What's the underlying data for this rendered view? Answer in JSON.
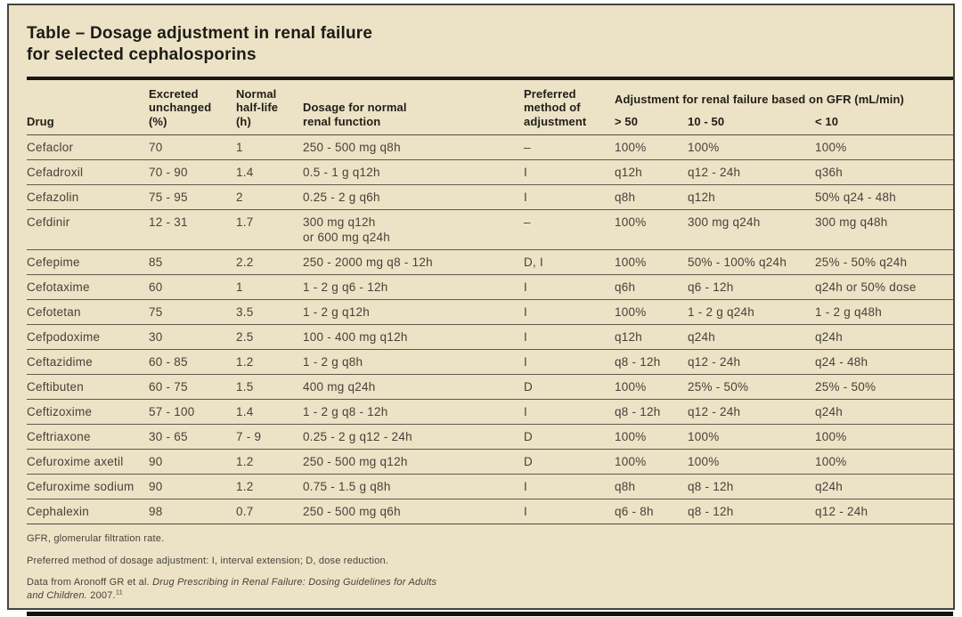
{
  "title": {
    "line1": "Table – Dosage adjustment in renal failure",
    "line2": "for selected cephalosporins"
  },
  "table": {
    "col_ids": [
      "drug",
      "excreted-unchanged",
      "half-life",
      "normal-dosage",
      "adjustment-method",
      "gfr-gt-50",
      "gfr-10-50",
      "gfr-lt-10"
    ],
    "headers": {
      "drug": "Drug",
      "excreted": "Excreted\nunchanged\n(%)",
      "half_life": "Normal\nhalf-life\n(h)",
      "dosage": "Dosage for normal\nrenal function",
      "method": "Preferred\nmethod of\nadjustment",
      "gfr_group": "Adjustment for renal failure based on GFR (mL/min)",
      "gfr_gt50": "> 50",
      "gfr_10_50": "10 - 50",
      "gfr_lt10": "< 10"
    },
    "rows": [
      [
        "Cefaclor",
        "70",
        "1",
        "250 - 500 mg q8h",
        "–",
        "100%",
        "100%",
        "100%"
      ],
      [
        "Cefadroxil",
        "70 - 90",
        "1.4",
        "0.5 - 1 g q12h",
        "I",
        "q12h",
        "q12 - 24h",
        "q36h"
      ],
      [
        "Cefazolin",
        "75 - 95",
        "2",
        "0.25 - 2 g q6h",
        "I",
        "q8h",
        "q12h",
        "50% q24 - 48h"
      ],
      [
        "Cefdinir",
        "12 - 31",
        "1.7",
        "300 mg q12h\nor 600 mg q24h",
        "–",
        "100%",
        "300 mg q24h",
        "300 mg q48h"
      ],
      [
        "Cefepime",
        "85",
        "2.2",
        "250 - 2000 mg q8 - 12h",
        "D, I",
        "100%",
        "50% - 100% q24h",
        "25% - 50% q24h"
      ],
      [
        "Cefotaxime",
        "60",
        "1",
        "1 - 2 g q6 - 12h",
        "I",
        "q6h",
        "q6 - 12h",
        "q24h or 50% dose"
      ],
      [
        "Cefotetan",
        "75",
        "3.5",
        "1 - 2 g q12h",
        "I",
        "100%",
        "1 - 2 g q24h",
        "1 - 2 g q48h"
      ],
      [
        "Cefpodoxime",
        "30",
        "2.5",
        "100 - 400 mg q12h",
        "I",
        "q12h",
        "q24h",
        "q24h"
      ],
      [
        "Ceftazidime",
        "60 - 85",
        "1.2",
        "1 - 2 g q8h",
        "I",
        "q8 - 12h",
        "q12 - 24h",
        "q24 - 48h"
      ],
      [
        "Ceftibuten",
        "60 - 75",
        "1.5",
        "400 mg q24h",
        "D",
        "100%",
        "25% - 50%",
        "25% - 50%"
      ],
      [
        "Ceftizoxime",
        "57 - 100",
        "1.4",
        "1 - 2 g q8 - 12h",
        "I",
        "q8 - 12h",
        "q12 - 24h",
        "q24h"
      ],
      [
        "Ceftriaxone",
        "30 - 65",
        "7 - 9",
        "0.25 - 2 g q12 - 24h",
        "D",
        "100%",
        "100%",
        "100%"
      ],
      [
        "Cefuroxime axetil",
        "90",
        "1.2",
        "250 - 500 mg q12h",
        "D",
        "100%",
        "100%",
        "100%"
      ],
      [
        "Cefuroxime sodium",
        "90",
        "1.2",
        "0.75 - 1.5 g q8h",
        "I",
        "q8h",
        "q8 - 12h",
        "q24h"
      ],
      [
        "Cephalexin",
        "98",
        "0.7",
        "250 - 500 mg q6h",
        "I",
        "q6 - 8h",
        "q8 - 12h",
        "q12 - 24h"
      ]
    ]
  },
  "footnotes": {
    "gfr": "GFR, glomerular filtration rate.",
    "method": "Preferred method of dosage adjustment: I, interval extension; D, dose reduction.",
    "source_prefix": "Data from Aronoff GR et al. ",
    "source_title": "Drug Prescribing in Renal Failure: Dosing Guidelines for Adults and Children.",
    "source_year": " 2007.",
    "source_ref": "11"
  },
  "colors": {
    "card_background": "#ece3c6",
    "rule": "#191813",
    "heading_text": "#1d1b16",
    "body_text": "#45423a"
  }
}
